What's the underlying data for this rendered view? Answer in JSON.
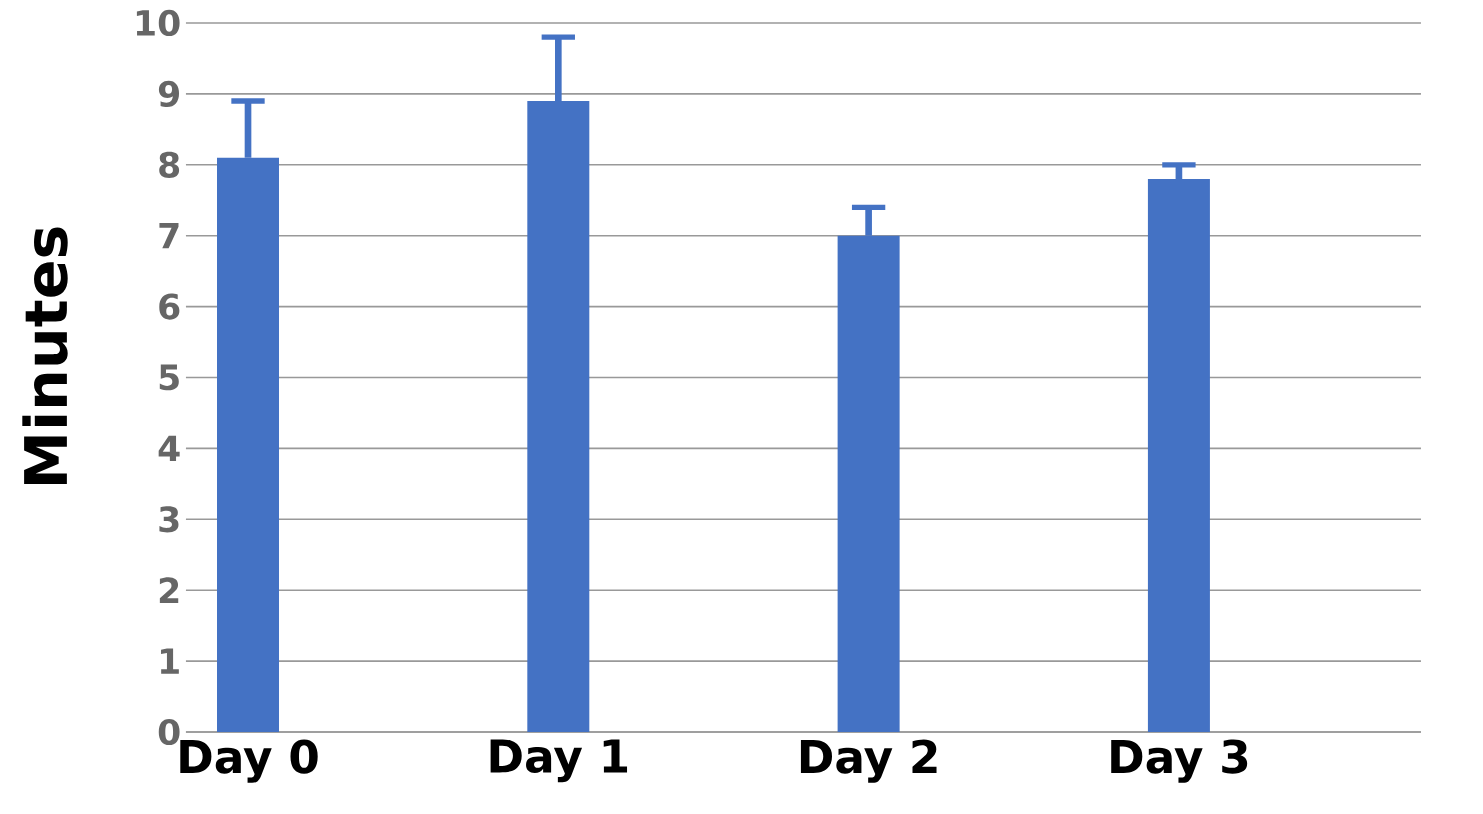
{
  "chart_data": {
    "type": "bar",
    "ylabel": "Minutes",
    "categories": [
      "Day 0",
      "Day 1",
      "Day 2",
      "Day 3"
    ],
    "values": [
      8.1,
      8.9,
      7.0,
      7.8
    ],
    "errors": [
      [
        8.1,
        8.9
      ],
      [
        8.9,
        9.8
      ],
      [
        7.0,
        7.4
      ],
      [
        7.8,
        8.0
      ]
    ],
    "color": "#4472c4",
    "ylim": [
      0,
      10
    ],
    "yticks": [
      0,
      1,
      2,
      3,
      4,
      5,
      6,
      7,
      8,
      9,
      10
    ],
    "grid": "y"
  }
}
